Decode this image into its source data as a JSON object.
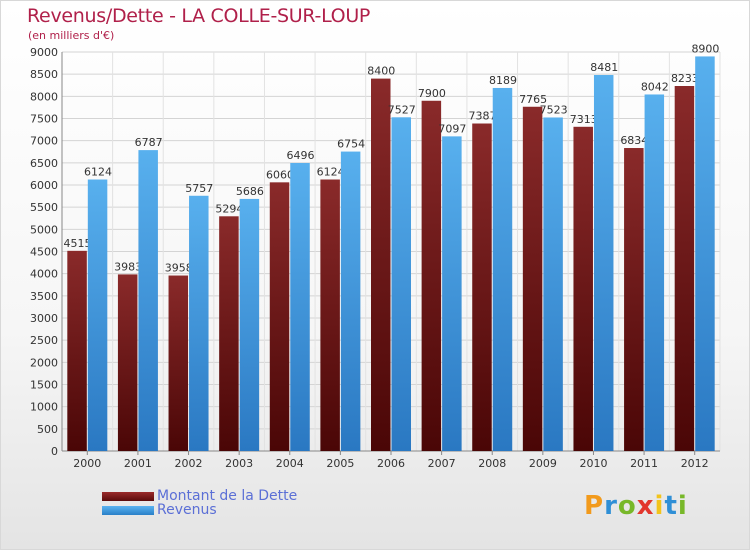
{
  "title": "Revenus/Dette - LA COLLE-SUR-LOUP",
  "subtitle": "(en milliers d'€)",
  "chart_data": {
    "type": "bar",
    "categories": [
      "2000",
      "2001",
      "2002",
      "2003",
      "2004",
      "2005",
      "2006",
      "2007",
      "2008",
      "2009",
      "2010",
      "2011",
      "2012"
    ],
    "series": [
      {
        "name": "Montant de la Dette",
        "color": "#7a1a1a",
        "values": [
          4515,
          3983,
          3958,
          5294,
          6060,
          6124,
          8400,
          7900,
          7387,
          7765,
          7313,
          6834,
          8233
        ]
      },
      {
        "name": "Revenus",
        "color": "#4aa3e6",
        "values": [
          6124,
          6787,
          5757,
          5686,
          6496,
          6754,
          7527,
          7097,
          8189,
          7523,
          8481,
          8042,
          8900
        ]
      }
    ],
    "ylim": [
      0,
      9000
    ],
    "ytick_step": 500,
    "yticks": [
      "0",
      "500",
      "1000",
      "1500",
      "2000",
      "2500",
      "3000",
      "3500",
      "4000",
      "4500",
      "5000",
      "5500",
      "6000",
      "6500",
      "7000",
      "7500",
      "8000",
      "8500",
      "9000"
    ],
    "grid": true,
    "legend_position": "bottom-left"
  },
  "legend": {
    "debt_label": "Montant de la Dette",
    "revenue_label": "Revenus"
  },
  "logo": {
    "letters": [
      "P",
      "r",
      "o",
      "x",
      "i",
      "t",
      "i"
    ],
    "colors": [
      "#f29a1c",
      "#2f8fd6",
      "#78b829",
      "#e2362d",
      "#f2c41c",
      "#2f8fd6",
      "#78b829"
    ]
  }
}
